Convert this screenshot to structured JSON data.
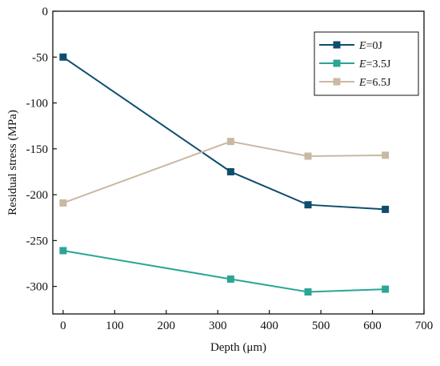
{
  "chart_data": {
    "type": "line",
    "title": "",
    "xlabel": "Depth (μm)",
    "ylabel": "Residual stress (MPa)",
    "xlim": [
      -20,
      700
    ],
    "ylim": [
      -330,
      0
    ],
    "x_ticks": [
      0,
      100,
      200,
      300,
      400,
      500,
      600,
      700
    ],
    "y_ticks": [
      0,
      -50,
      -100,
      -150,
      -200,
      -250,
      -300
    ],
    "grid": false,
    "legend_position": "top-right",
    "series": [
      {
        "name_prefix": "E",
        "name_suffix": "=0J",
        "color": "#0e4d6e",
        "marker": "square",
        "x": [
          0,
          325,
          475,
          625
        ],
        "values": [
          -50,
          -175,
          -211,
          -216
        ]
      },
      {
        "name_prefix": "E",
        "name_suffix": "=3.5J",
        "color": "#2aa596",
        "marker": "square",
        "x": [
          0,
          325,
          475,
          625
        ],
        "values": [
          -261,
          -292,
          -306,
          -303
        ]
      },
      {
        "name_prefix": "E",
        "name_suffix": "=6.5J",
        "color": "#c9b9a2",
        "marker": "square",
        "x": [
          0,
          325,
          475,
          625
        ],
        "values": [
          -209,
          -142,
          -158,
          -157
        ]
      }
    ]
  }
}
